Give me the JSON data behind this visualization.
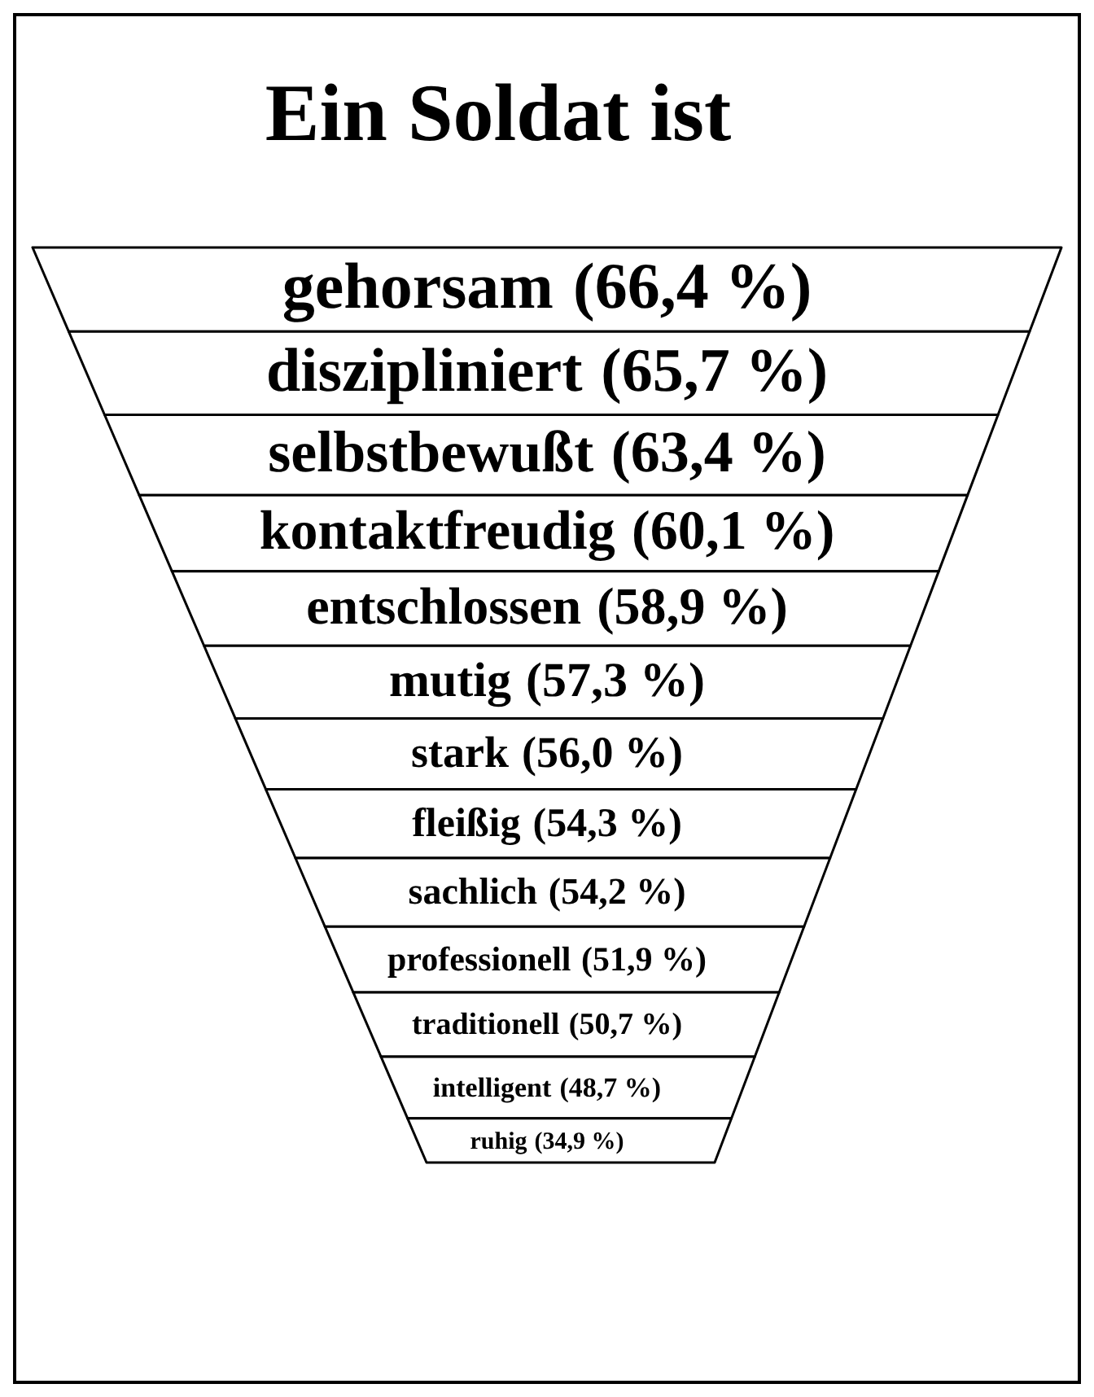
{
  "chart_data": {
    "type": "other",
    "title": "Ein Soldat ist",
    "categories": [
      "gehorsam",
      "diszipliniert",
      "selbstbewußt",
      "kontaktfreudig",
      "entschlossen",
      "mutig",
      "stark",
      "fleißig",
      "sachlich",
      "professionell",
      "traditionell",
      "intelligent",
      "ruhig"
    ],
    "values": [
      66.4,
      65.7,
      63.4,
      60.1,
      58.9,
      57.3,
      56.0,
      54.3,
      54.2,
      51.9,
      50.7,
      48.7,
      34.9
    ],
    "value_labels": [
      "(66,4 %)",
      "(65,7 %)",
      "(63,4 %)",
      "(60,1 %)",
      "(58,9 %)",
      "(57,3 %)",
      "(56,0 %)",
      "(54,3 %)",
      "(54,2 %)",
      "(51,9 %)",
      "(50,7 %)",
      "(48,7 %)",
      "(34,9 %)"
    ]
  }
}
